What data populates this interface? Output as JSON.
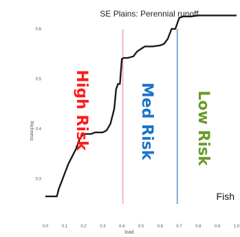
{
  "chart_data": {
    "type": "line",
    "title": "SE Plains: Perennial runoff",
    "xlabel": "load",
    "ylabel": "Richness",
    "corner_label": "Fish",
    "xlim": [
      0.0,
      1.0
    ],
    "ylim": [
      0.25,
      0.6
    ],
    "x_ticks": [
      0.0,
      0.1,
      0.2,
      0.3,
      0.4,
      0.5,
      0.6,
      0.7,
      0.8,
      0.9,
      1.0
    ],
    "x_tick_labels": [
      "0.0",
      "0.1",
      "0.2",
      "0.3",
      "0.4",
      "0.5",
      "0.6",
      "0.7",
      "0.8",
      "0.9",
      "1.0"
    ],
    "y_ticks": [
      0.3,
      0.4,
      0.5,
      0.6
    ],
    "y_tick_labels": [
      "0.3",
      "0.4",
      "0.5",
      "0.6"
    ],
    "thresholds": [
      {
        "x": 0.405,
        "color": "#f4b5bf"
      },
      {
        "x": 0.69,
        "color": "#7ea7d6"
      }
    ],
    "zones": [
      {
        "label": "High Risk",
        "color": "#ff1a1a"
      },
      {
        "label": "Med Risk",
        "color": "#1a73c9"
      },
      {
        "label": "Low Risk",
        "color": "#6a9a2a"
      }
    ],
    "line_color": "#1a1a1a",
    "series": [
      {
        "x": [
          0.0,
          0.06,
          0.07,
          0.1,
          0.12,
          0.16,
          0.18,
          0.2,
          0.22,
          0.24,
          0.26,
          0.3,
          0.32,
          0.34,
          0.36,
          0.37,
          0.38,
          0.39,
          0.4,
          0.41,
          0.43,
          0.46,
          0.48,
          0.5,
          0.52,
          0.54,
          0.56,
          0.6,
          0.62,
          0.64,
          0.66,
          0.68,
          0.7,
          0.72,
          0.76,
          0.8,
          0.85,
          0.9,
          1.0
        ],
        "y": [
          0.265,
          0.265,
          0.28,
          0.31,
          0.33,
          0.36,
          0.38,
          0.39,
          0.39,
          0.39,
          0.393,
          0.393,
          0.397,
          0.41,
          0.44,
          0.48,
          0.49,
          0.49,
          0.54,
          0.542,
          0.542,
          0.545,
          0.555,
          0.56,
          0.565,
          0.565,
          0.565,
          0.567,
          0.57,
          0.58,
          0.6,
          0.6,
          0.622,
          0.625,
          0.625,
          0.627,
          0.627,
          0.627,
          0.627
        ]
      }
    ]
  }
}
